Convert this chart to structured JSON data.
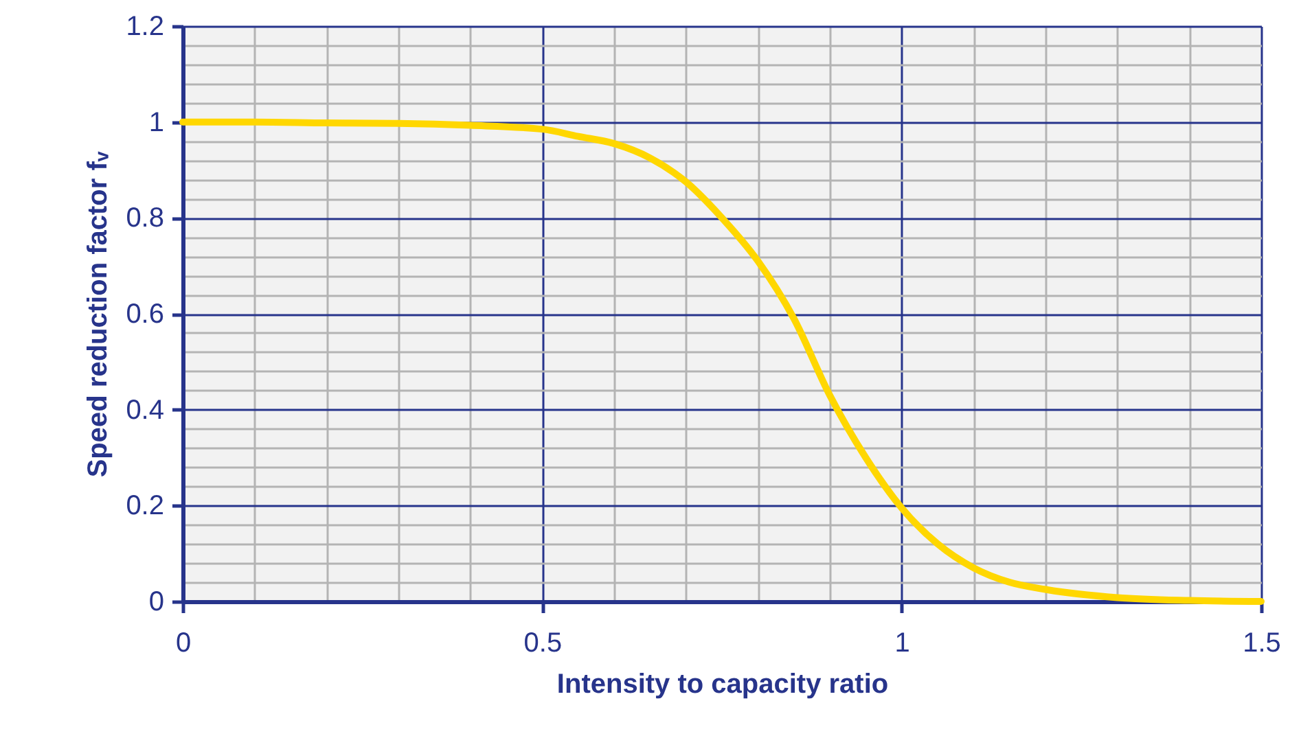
{
  "chart_data": {
    "type": "line",
    "xlabel": "Intensity to capacity ratio",
    "ylabel": "Speed reduction factor fᵥ",
    "x": [
      0,
      0.1,
      0.2,
      0.3,
      0.4,
      0.5,
      0.55,
      0.6,
      0.65,
      0.7,
      0.75,
      0.8,
      0.85,
      0.9,
      0.95,
      1.0,
      1.05,
      1.1,
      1.15,
      1.2,
      1.3,
      1.4,
      1.5
    ],
    "series": [
      {
        "color": "#ffd700",
        "values": [
          1,
          1,
          0.998,
          0.997,
          0.993,
          0.985,
          0.97,
          0.955,
          0.925,
          0.875,
          0.8,
          0.71,
          0.59,
          0.43,
          0.3,
          0.195,
          0.12,
          0.07,
          0.04,
          0.025,
          0.008,
          0.002,
          0
        ]
      }
    ],
    "xlim": [
      0,
      1.5
    ],
    "ylim": [
      0,
      1.2
    ],
    "xticks": [
      0,
      {
        "value": 0.1,
        "label": null
      },
      {
        "value": 0.2,
        "label": null
      },
      {
        "value": 0.3,
        "label": null
      },
      {
        "value": 0.4,
        "label": null
      },
      0.5,
      {
        "value": 0.6,
        "label": null
      },
      {
        "value": 0.7,
        "label": null
      },
      {
        "value": 0.8,
        "label": null
      },
      {
        "value": 0.9,
        "label": null
      },
      1,
      {
        "value": 1.1,
        "label": null
      },
      {
        "value": 1.2,
        "label": null
      },
      {
        "value": 1.3,
        "label": null
      },
      {
        "value": 1.4,
        "label": null
      },
      1.5
    ],
    "yticks": [
      0,
      {
        "value": 0.04,
        "label": null
      },
      {
        "value": 0.08,
        "label": null
      },
      {
        "value": 0.12,
        "label": null
      },
      {
        "value": 0.16,
        "label": null
      },
      0.2,
      {
        "value": 0.24,
        "label": null
      },
      {
        "value": 0.28,
        "label": null
      },
      {
        "value": 0.32,
        "label": null
      },
      {
        "value": 0.36,
        "label": null
      },
      0.4,
      {
        "value": 0.44,
        "label": null
      },
      {
        "value": 0.48,
        "label": null
      },
      {
        "value": 0.52,
        "label": null
      },
      {
        "value": 0.56,
        "label": null
      },
      0.6,
      {
        "value": 0.64,
        "label": null
      },
      {
        "value": 0.68,
        "label": null
      },
      {
        "value": 0.72,
        "label": null
      },
      {
        "value": 0.76,
        "label": null
      },
      0.8,
      {
        "value": 0.84,
        "label": null
      },
      {
        "value": 0.88,
        "label": null
      },
      {
        "value": 0.92,
        "label": null
      },
      {
        "value": 0.96,
        "label": null
      },
      1,
      {
        "value": 1.04,
        "label": null
      },
      {
        "value": 1.08,
        "label": null
      },
      {
        "value": 1.12,
        "label": null
      },
      {
        "value": 1.16,
        "label": null
      },
      1.2
    ],
    "grid": true,
    "legend": false,
    "marker": "none",
    "line_style": "solid"
  }
}
